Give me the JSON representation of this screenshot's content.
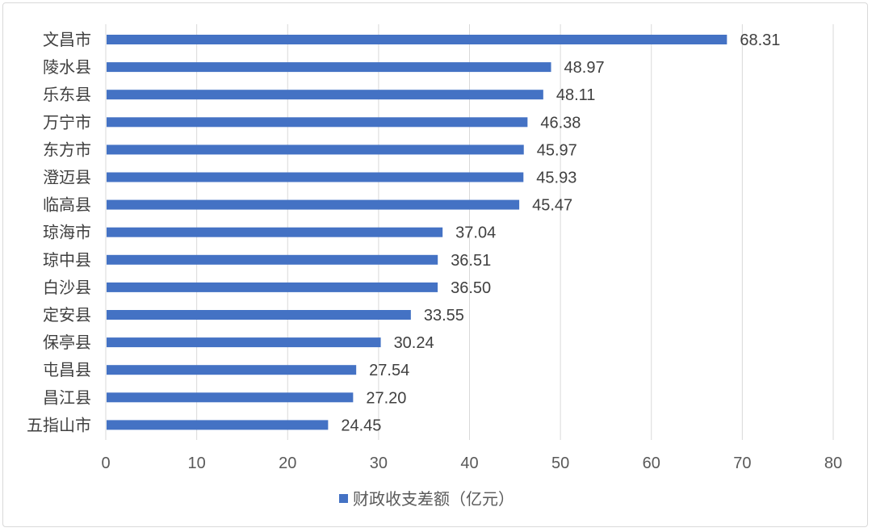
{
  "chart_data": {
    "type": "bar",
    "orientation": "horizontal",
    "categories": [
      "文昌市",
      "陵水县",
      "乐东县",
      "万宁市",
      "东方市",
      "澄迈县",
      "临高县",
      "琼海市",
      "琼中县",
      "白沙县",
      "定安县",
      "保亭县",
      "屯昌县",
      "昌江县",
      "五指山市"
    ],
    "series": [
      {
        "name": "财政收支差额（亿元）",
        "values": [
          68.31,
          48.97,
          48.11,
          46.38,
          45.97,
          45.93,
          45.47,
          37.04,
          36.51,
          36.5,
          33.55,
          30.24,
          27.54,
          27.2,
          24.45
        ],
        "value_labels": [
          "68.31",
          "48.97",
          "48.11",
          "46.38",
          "45.97",
          "45.93",
          "45.47",
          "37.04",
          "36.51",
          "36.50",
          "33.55",
          "30.24",
          "27.54",
          "27.20",
          "24.45"
        ],
        "color": "#4472c4"
      }
    ],
    "xlim": [
      0,
      80
    ],
    "x_ticks": [
      "0",
      "10",
      "20",
      "30",
      "40",
      "50",
      "60",
      "70",
      "80"
    ],
    "grid": "vertical",
    "legend_position": "bottom",
    "title": "",
    "xlabel": "",
    "ylabel": ""
  },
  "colors": {
    "bar": "#4472c4",
    "grid": "#d9d9d9",
    "text": "#404040"
  }
}
